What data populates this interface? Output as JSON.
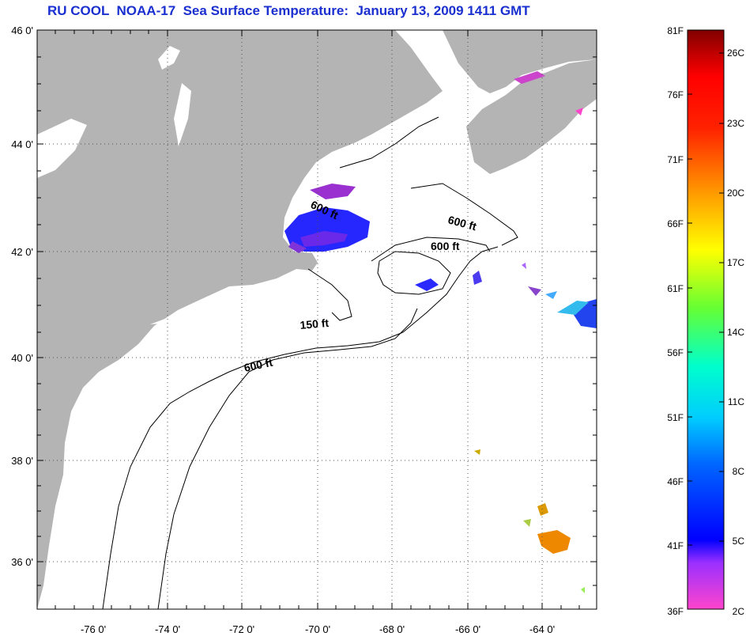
{
  "title": "RU COOL  NOAA-17  Sea Surface Temperature:  January 13, 2009 1411 GMT",
  "map": {
    "lat_labels": [
      "46 0'",
      "44 0'",
      "42 0'",
      "40 0'",
      "38 0'",
      "36 0'"
    ],
    "lon_labels": [
      "-76 0'",
      "-74 0'",
      "-72 0'",
      "-70 0'",
      "-68 0'",
      "-66 0'",
      "-64 0'"
    ],
    "contour_labels": {
      "c1": "600 ft",
      "c2": "600 ft",
      "c3": "600 ft",
      "c4": "150 ft",
      "c5": "600 ft"
    },
    "land_color": "#b4b4b4",
    "ocean_color": "#ffffff"
  },
  "colorbar": {
    "f_labels": [
      "81F",
      "76F",
      "71F",
      "66F",
      "61F",
      "56F",
      "51F",
      "46F",
      "41F",
      "36F"
    ],
    "c_labels": [
      "26C",
      "23C",
      "20C",
      "17C",
      "14C",
      "11C",
      "8C",
      "5C",
      "2C"
    ],
    "colors": [
      "#ff44cc",
      "#7a22ff",
      "#0000ff",
      "#00aaff",
      "#00ffff",
      "#55ff55",
      "#ffff00",
      "#ffaa00",
      "#ff4400",
      "#ff0000",
      "#8b0000"
    ]
  }
}
